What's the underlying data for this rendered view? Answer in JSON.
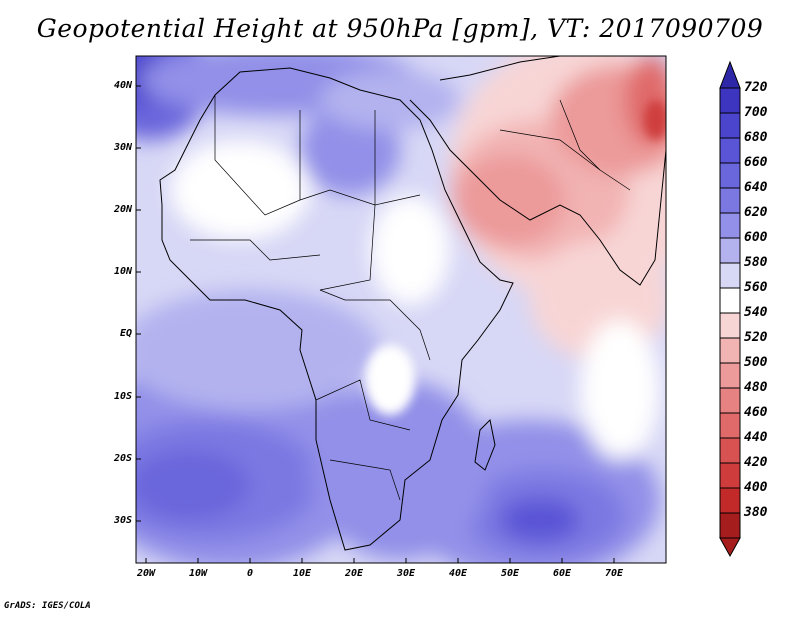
{
  "title": "Geopotential Height at 950hPa [gpm], VT: 2017090709",
  "credit": "GrADS: IGES/COLA",
  "map": {
    "lat_labels": [
      "40N",
      "30N",
      "20N",
      "10N",
      "EQ",
      "10S",
      "20S",
      "30S"
    ],
    "lon_labels": [
      "20W",
      "10W",
      "0",
      "10E",
      "20E",
      "30E",
      "40E",
      "50E",
      "60E",
      "70E"
    ],
    "lat_range": [
      -37,
      45
    ],
    "lon_range": [
      -22,
      80
    ]
  },
  "colorbar": {
    "levels": [
      "720",
      "700",
      "680",
      "660",
      "640",
      "620",
      "600",
      "580",
      "560",
      "540",
      "520",
      "500",
      "480",
      "460",
      "440",
      "420",
      "400",
      "380"
    ],
    "colors": [
      "#2e28a8",
      "#3d35c0",
      "#4b44cc",
      "#5a55d6",
      "#6a66dc",
      "#7b78e2",
      "#9290e8",
      "#b3b2ef",
      "#d7d7f6",
      "#ffffff",
      "#f8d5d5",
      "#f2b3b3",
      "#ec9a9a",
      "#e68282",
      "#e06a6a",
      "#d95252",
      "#cf3c3c",
      "#c22a2a",
      "#a51d1d"
    ]
  }
}
